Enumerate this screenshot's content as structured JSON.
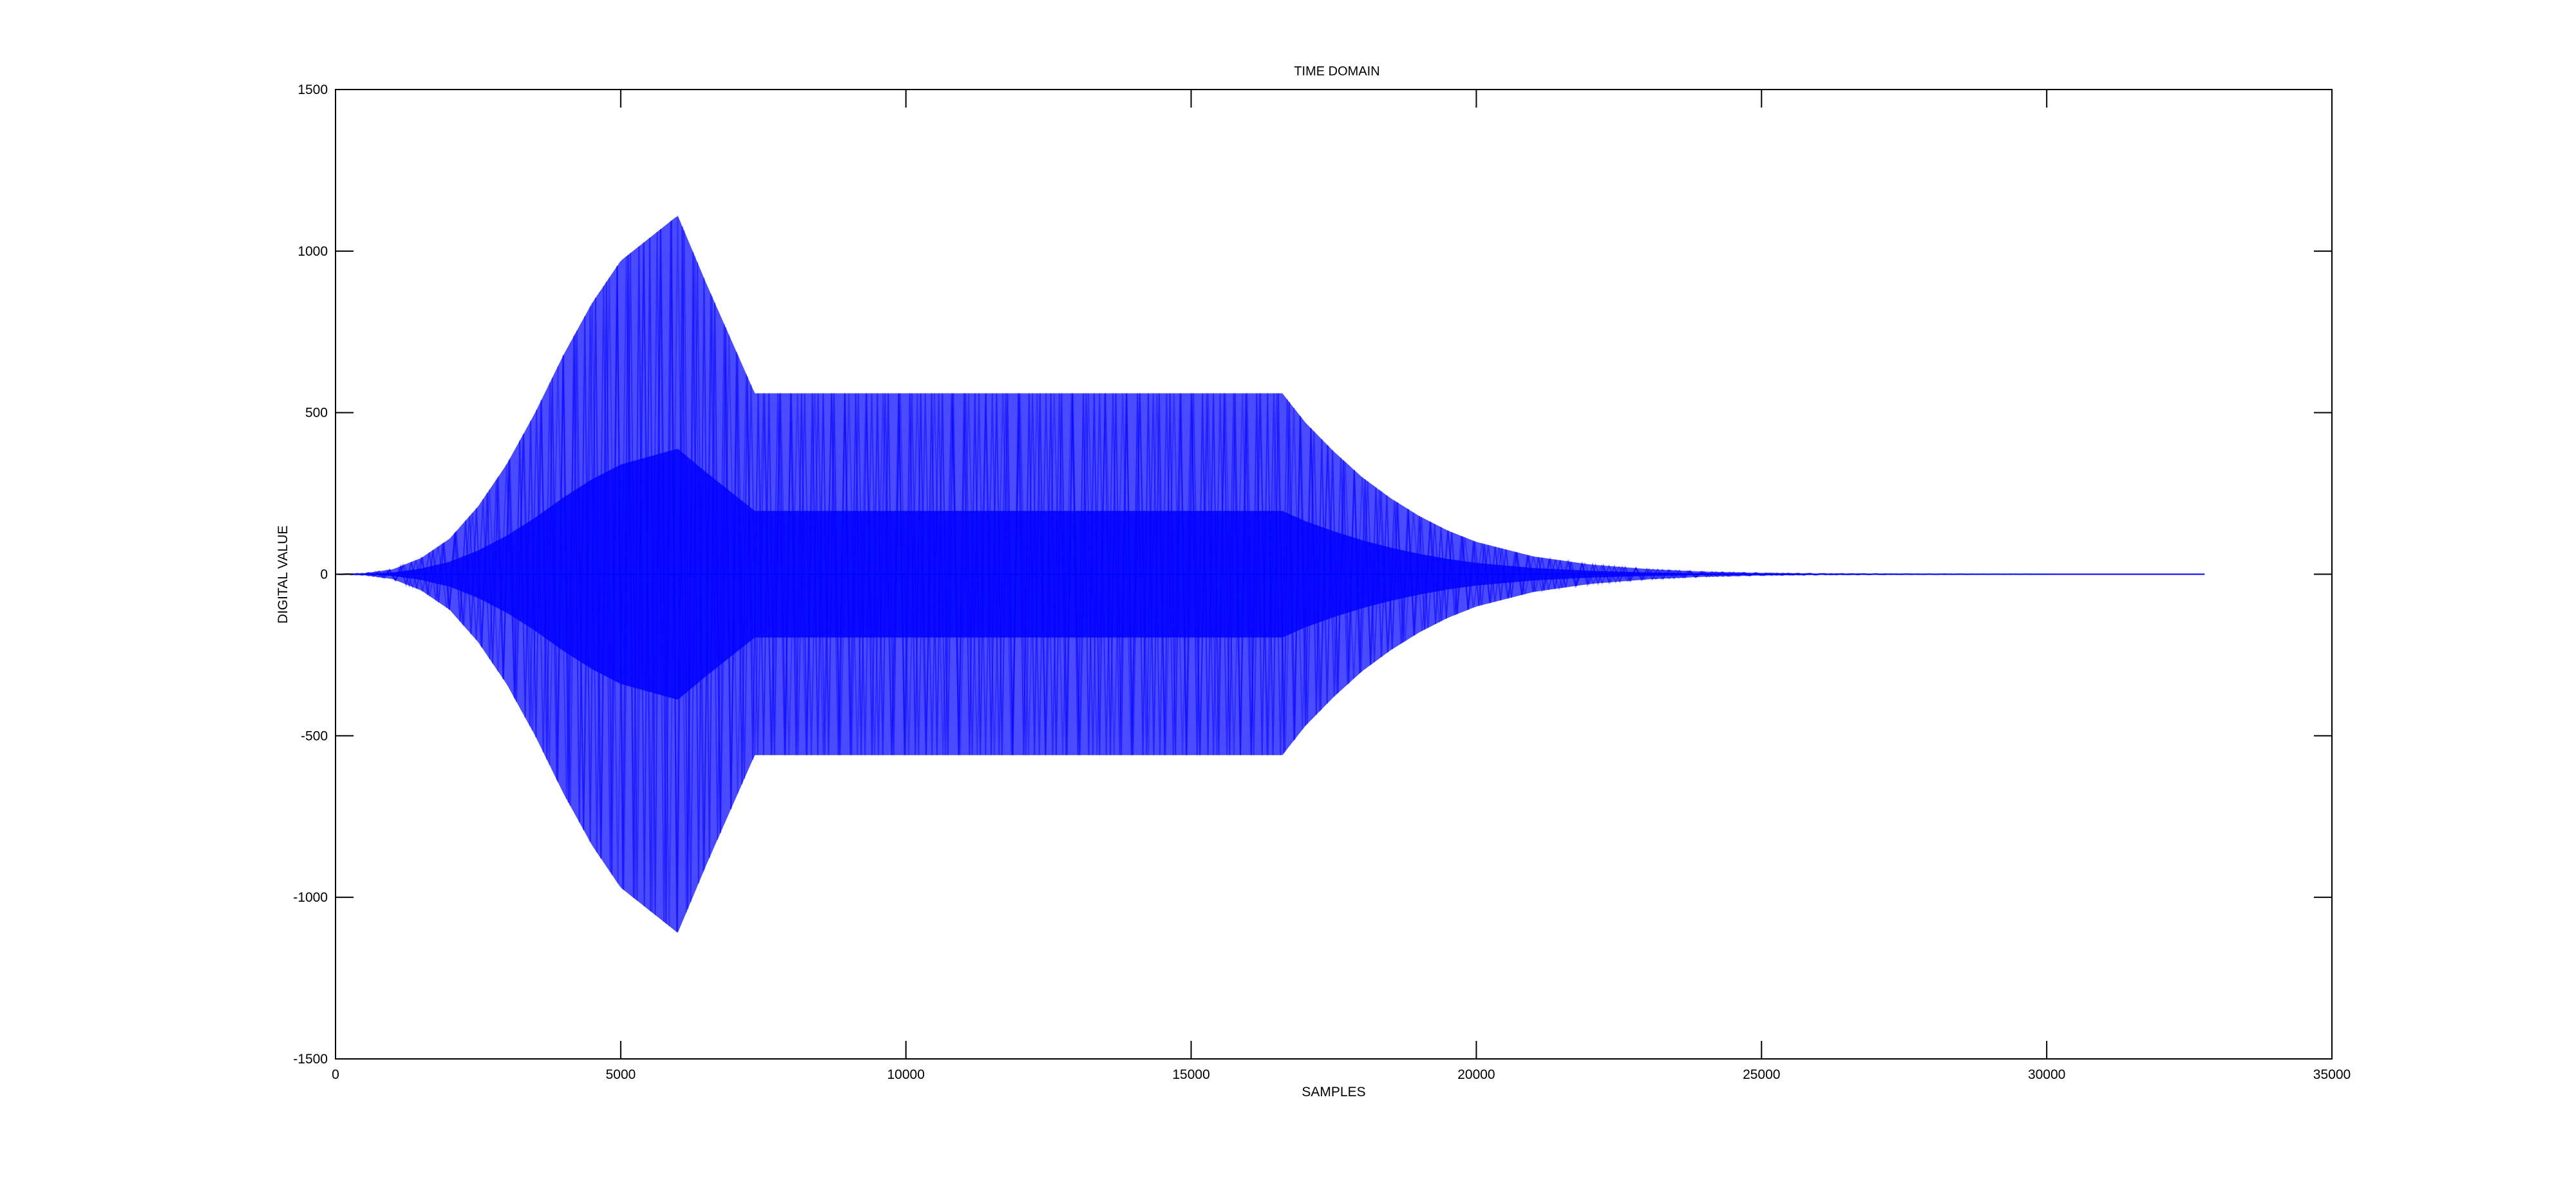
{
  "chart_data": {
    "type": "area",
    "title": "TIME DOMAIN",
    "xlabel": "SAMPLES",
    "ylabel": "DIGITAL VALUE",
    "xlim": [
      0,
      35000
    ],
    "ylim": [
      -1500,
      1500
    ],
    "xticks": [
      0,
      5000,
      10000,
      15000,
      20000,
      25000,
      30000,
      35000
    ],
    "yticks": [
      -1500,
      -1000,
      -500,
      0,
      500,
      1000,
      1500
    ],
    "grid": false,
    "legend": "none",
    "series": [
      {
        "color": "#0000ff",
        "envelope_x": [
          0,
          500,
          1000,
          1500,
          2000,
          2500,
          3000,
          3500,
          4000,
          4500,
          5000,
          5500,
          6000,
          6500,
          7000,
          7350,
          8000,
          10000,
          12000,
          14000,
          16000,
          16600,
          17000,
          17500,
          18000,
          18500,
          19000,
          19500,
          20000,
          21000,
          22000,
          23000,
          24000,
          25000,
          26000,
          27000,
          28000,
          29000,
          30000,
          31000,
          32000,
          32768
        ],
        "envelope_max": [
          0,
          3,
          15,
          50,
          110,
          210,
          340,
          500,
          680,
          840,
          970,
          1040,
          1110,
          900,
          700,
          560,
          560,
          560,
          560,
          560,
          560,
          560,
          470,
          380,
          300,
          235,
          180,
          135,
          100,
          55,
          30,
          16,
          8,
          4,
          2,
          1,
          0.5,
          0.2,
          0.1,
          0.05,
          0.02,
          0
        ]
      }
    ]
  }
}
